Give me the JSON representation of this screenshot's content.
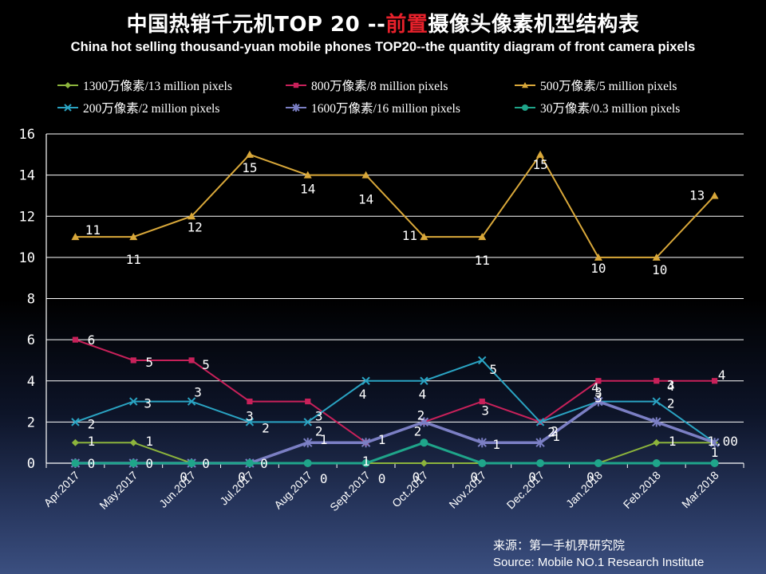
{
  "title": {
    "cn_prefix": "中国热销千元机TOP 20 --",
    "cn_highlight": "前置",
    "cn_suffix": "摄像头像素机型结构表",
    "en": "China hot selling thousand-yuan mobile phones TOP20--the quantity diagram of front camera pixels"
  },
  "source": {
    "line1": "来源：第一手机界研究院",
    "line2": "Source: Mobile NO.1 Research Institute"
  },
  "chart_data": {
    "type": "line",
    "categories": [
      "Apr.2017",
      "May.2017",
      "Jun.2017",
      "Jul.2017",
      "Aug.2017",
      "Sept.2017",
      "Oct.2017",
      "Nov.2017",
      "Dec.2017",
      "Jan.2018",
      "Feb.2018",
      "Mar.2018"
    ],
    "ylim": [
      0,
      16
    ],
    "yticks": [
      "0",
      "2",
      "4",
      "6",
      "8",
      "10",
      "12",
      "14",
      "16"
    ],
    "grid": true,
    "legend_position": "top",
    "series": [
      {
        "name": "1300万像素/13 million pixels",
        "color": "#8cb43c",
        "marker": "diamond",
        "values": [
          1,
          1,
          0,
          0,
          0,
          0,
          0,
          0,
          0,
          0,
          1,
          1
        ],
        "labels": [
          "1",
          "1",
          "0",
          "0",
          "0",
          "0",
          "0",
          "0",
          "0",
          "0",
          "1",
          "1.00"
        ]
      },
      {
        "name": "800万像素/8 million pixels",
        "color": "#c8215a",
        "marker": "square",
        "values": [
          6,
          5,
          5,
          3,
          3,
          1,
          2,
          3,
          2,
          4,
          4,
          4
        ],
        "labels": [
          "6",
          "5",
          "5",
          "3",
          "3",
          "1",
          "2",
          "3",
          "2",
          "4",
          "4",
          "4"
        ]
      },
      {
        "name": "500万像素/5 million pixels",
        "color": "#d9a83a",
        "marker": "triangle",
        "values": [
          11,
          11,
          12,
          15,
          14,
          14,
          11,
          11,
          15,
          10,
          10,
          13
        ],
        "labels": [
          "11",
          "11",
          "12",
          "15",
          "14",
          "14",
          "11",
          "11",
          "15",
          "10",
          "10",
          "13"
        ]
      },
      {
        "name": "200万像素/2 million pixels",
        "color": "#2aa3c2",
        "marker": "x",
        "values": [
          2,
          3,
          3,
          2,
          2,
          4,
          4,
          5,
          2,
          3,
          3,
          1
        ],
        "labels": [
          "2",
          "3",
          "3",
          "2",
          "2",
          "4",
          "4",
          "5",
          "2",
          "3",
          "3",
          "1"
        ]
      },
      {
        "name": "1600万像素/16 million pixels",
        "color": "#7b7fc4",
        "marker": "star",
        "values": [
          0,
          0,
          0,
          0,
          1,
          1,
          2,
          1,
          1,
          3,
          2,
          1
        ],
        "labels": [
          "0",
          "0",
          "0",
          "0",
          "1",
          "1",
          "2",
          "1",
          "1",
          "3",
          "2",
          ""
        ]
      },
      {
        "name": "30万像素/0.3 million pixels",
        "color": "#1fa58a",
        "marker": "circle",
        "values": [
          0,
          0,
          0,
          0,
          0,
          0,
          1,
          0,
          0,
          0,
          0,
          0
        ],
        "labels": [
          "",
          "",
          "",
          "",
          "",
          "",
          "",
          "",
          "",
          "",
          "",
          ""
        ]
      }
    ]
  }
}
